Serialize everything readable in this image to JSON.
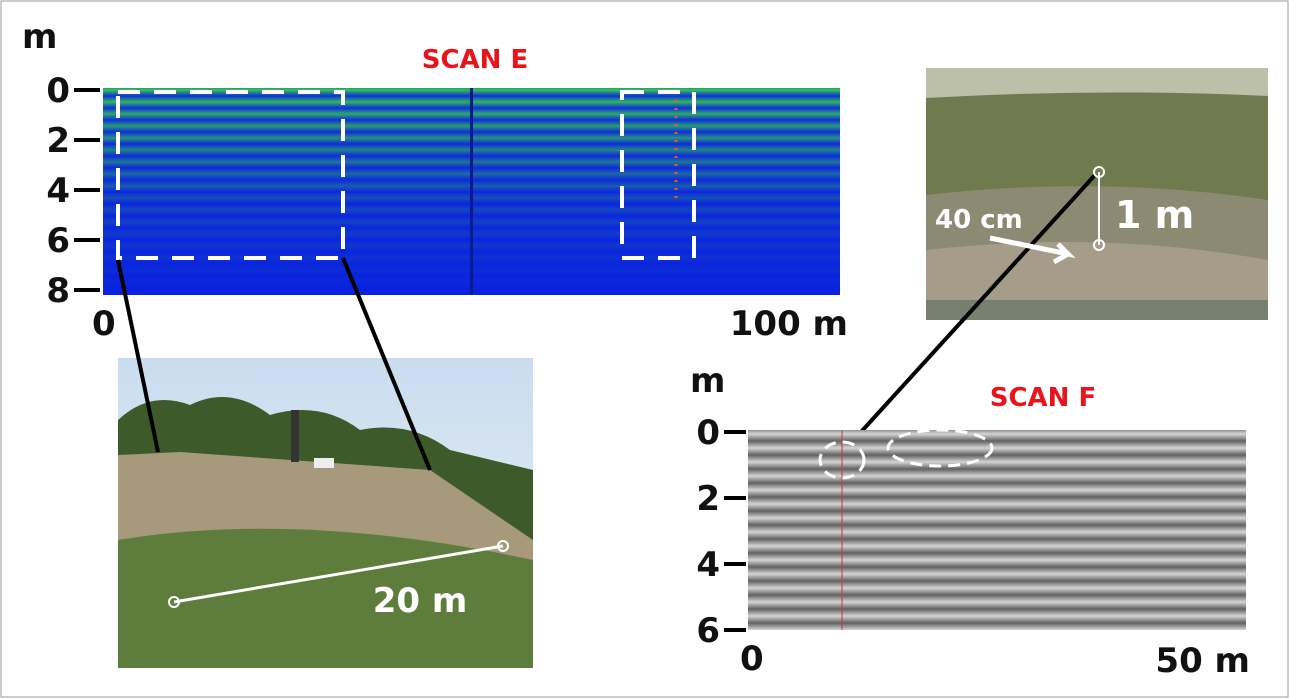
{
  "scan_e": {
    "title": "SCAN E",
    "unit": "m",
    "depth_labels": [
      "0",
      "2",
      "4",
      "6",
      "8"
    ],
    "x_start": "0",
    "x_end": "100 m"
  },
  "scan_f": {
    "title": "SCAN F",
    "unit": "m",
    "depth_labels": [
      "0",
      "2",
      "4",
      "6"
    ],
    "x_start": "0",
    "x_end": "50 m"
  },
  "photo_top": {
    "label_width": "40 cm",
    "label_depth": "1 m"
  },
  "photo_bottom": {
    "label_distance": "20 m"
  }
}
